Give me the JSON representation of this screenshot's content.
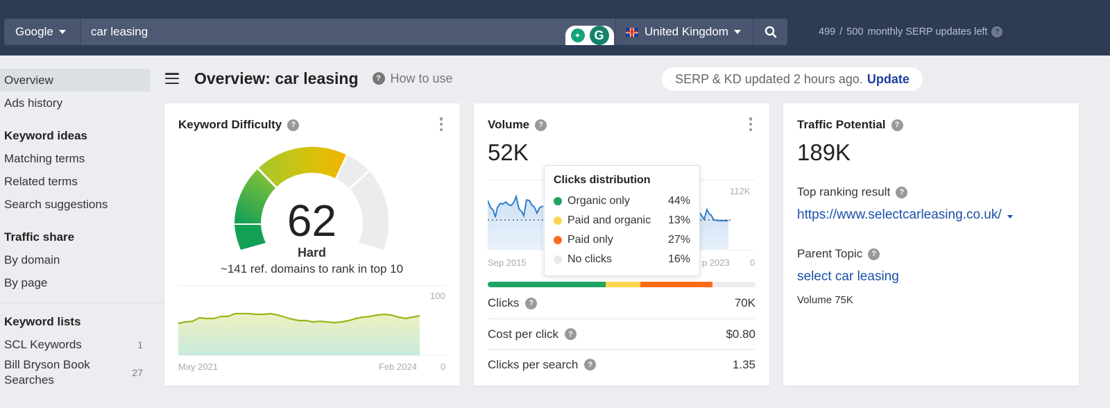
{
  "topbar": {
    "engine": "Google",
    "query": "car leasing",
    "country": "United Kingdom",
    "serp_used": "499",
    "serp_sep": "/",
    "serp_total": "500",
    "serp_text": "monthly SERP updates left",
    "help_glyph": "?"
  },
  "extension": {
    "bulb_glyph": "✦",
    "g_glyph": "G"
  },
  "sidebar": {
    "items_top": [
      {
        "label": "Overview",
        "active": true
      },
      {
        "label": "Ads history"
      }
    ],
    "section_keyword_ideas": "Keyword ideas",
    "keyword_ideas": [
      {
        "label": "Matching terms"
      },
      {
        "label": "Related terms"
      },
      {
        "label": "Search suggestions"
      }
    ],
    "section_traffic_share": "Traffic share",
    "traffic_share": [
      {
        "label": "By domain"
      },
      {
        "label": "By page"
      }
    ],
    "section_keyword_lists": "Keyword lists",
    "keyword_lists": [
      {
        "label": "SCL Keywords",
        "count": "1"
      },
      {
        "label": "Bill Bryson Book Searches",
        "count": "27"
      }
    ]
  },
  "header": {
    "title": "Overview: car leasing",
    "how_to_use": "How to use",
    "update_status": "SERP & KD updated 2 hours ago.",
    "update_link": "Update"
  },
  "kd_card": {
    "title": "Keyword Difficulty",
    "value": "62",
    "label": "Hard",
    "subtitle": "~141 ref. domains to rank in top 10",
    "chart": {
      "x_start": "May 2021",
      "x_end": "Feb 2024",
      "y_max": "100",
      "y_min": "0",
      "values": [
        46,
        48,
        49,
        54,
        53,
        53,
        56,
        56,
        60,
        60,
        60,
        59,
        59,
        60,
        58,
        55,
        52,
        50,
        50,
        48,
        49,
        48,
        47,
        48,
        50,
        53,
        55,
        56,
        58,
        59,
        58,
        55,
        53,
        55,
        57
      ]
    }
  },
  "volume_card": {
    "title": "Volume",
    "value": "52K",
    "chart": {
      "x_start": "Sep 2015",
      "x_end": "Sep 2023",
      "x_end_visible": "p 2023",
      "y_max": "112K",
      "y_min": "0"
    },
    "tooltip": {
      "title": "Clicks distribution",
      "rows": [
        {
          "label": "Organic only",
          "value": "44%",
          "color": "#1fa463"
        },
        {
          "label": "Paid and organic",
          "value": "13%",
          "color": "#ffd54f"
        },
        {
          "label": "Paid only",
          "value": "27%",
          "color": "#ff6d1a"
        },
        {
          "label": "No clicks",
          "value": "16%",
          "color": "#e8e8e8"
        }
      ]
    },
    "metrics": [
      {
        "label": "Clicks",
        "value": "70K"
      },
      {
        "label": "Cost per click",
        "value": "$0.80"
      },
      {
        "label": "Clicks per search",
        "value": "1.35"
      }
    ]
  },
  "traffic_card": {
    "title": "Traffic Potential",
    "value": "189K",
    "top_result_label": "Top ranking result",
    "top_result_url": "https://www.selectcarleasing.co.uk/",
    "parent_topic_label": "Parent Topic",
    "parent_topic": "select car leasing",
    "parent_volume": "Volume 75K"
  },
  "colors": {
    "topbar": "#2e3b55",
    "link": "#1b4fa8",
    "update_link": "#1b3fa0",
    "kd_green": "#1fa463",
    "kd_yellow": "#f0b400"
  }
}
